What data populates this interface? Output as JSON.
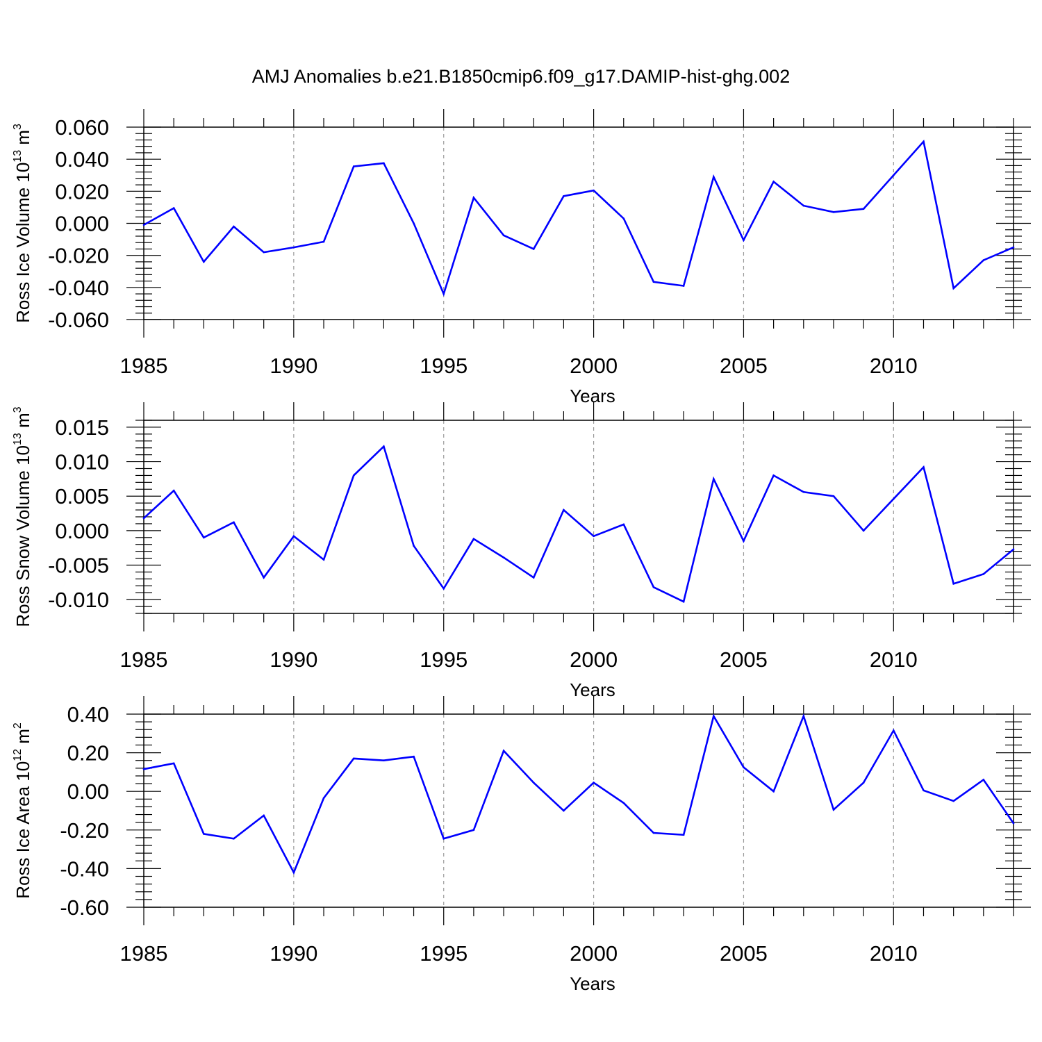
{
  "title": "AMJ Anomalies b.e21.B1850cmip6.f09_g17.DAMIP-hist-ghg.002",
  "colors": {
    "line": "#0000ff",
    "frame": "#000000",
    "grid": "#999999"
  },
  "chart_data": [
    {
      "type": "line",
      "ylabel": "Ross Ice Volume 10",
      "ylabel_exp": "13",
      "ylabel_unit": " m",
      "ylabel_unit_exp": "3",
      "xlabel": "Years",
      "xlim": [
        1985,
        2014
      ],
      "ylim": [
        -0.06,
        0.06
      ],
      "yticks": [
        -0.06,
        -0.04,
        -0.02,
        0.0,
        0.02,
        0.04,
        0.06
      ],
      "ytick_labels": [
        "-0.060",
        "-0.040",
        "-0.020",
        "0.000",
        "0.020",
        "0.040",
        "0.060"
      ],
      "xticks": [
        1985,
        1990,
        1995,
        2000,
        2005,
        2010
      ],
      "xtick_labels": [
        "1985",
        "1990",
        "1995",
        "2000",
        "2005",
        "2010"
      ],
      "grid": "vertical dashed at major x ticks",
      "x": [
        1985,
        1986,
        1987,
        1988,
        1989,
        1990,
        1991,
        1992,
        1993,
        1994,
        1995,
        1996,
        1997,
        1998,
        1999,
        2000,
        2001,
        2002,
        2003,
        2004,
        2005,
        2006,
        2007,
        2008,
        2009,
        2010,
        2011,
        2012,
        2013,
        2014
      ],
      "values": [
        -0.001,
        0.0095,
        -0.024,
        -0.002,
        -0.018,
        -0.015,
        -0.0115,
        0.0355,
        0.0375,
        0.0,
        -0.044,
        0.016,
        -0.0075,
        -0.016,
        0.017,
        0.0205,
        0.003,
        -0.0365,
        -0.039,
        0.029,
        -0.0105,
        0.026,
        0.011,
        0.007,
        0.009,
        0.03,
        0.051,
        -0.0405,
        -0.023,
        -0.015
      ]
    },
    {
      "type": "line",
      "ylabel": "Ross Snow Volume 10",
      "ylabel_exp": "13",
      "ylabel_unit": " m",
      "ylabel_unit_exp": "3",
      "xlabel": "Years",
      "xlim": [
        1985,
        2014
      ],
      "ylim": [
        -0.012,
        0.016
      ],
      "yticks": [
        -0.01,
        -0.005,
        0.0,
        0.005,
        0.01,
        0.015
      ],
      "ytick_labels": [
        "-0.010",
        "-0.005",
        "0.000",
        "0.005",
        "0.010",
        "0.015"
      ],
      "xticks": [
        1985,
        1990,
        1995,
        2000,
        2005,
        2010
      ],
      "xtick_labels": [
        "1985",
        "1990",
        "1995",
        "2000",
        "2005",
        "2010"
      ],
      "grid": "vertical dashed at major x ticks",
      "x": [
        1985,
        1986,
        1987,
        1988,
        1989,
        1990,
        1991,
        1992,
        1993,
        1994,
        1995,
        1996,
        1997,
        1998,
        1999,
        2000,
        2001,
        2002,
        2003,
        2004,
        2005,
        2006,
        2007,
        2008,
        2009,
        2010,
        2011,
        2012,
        2013,
        2014
      ],
      "values": [
        0.0018,
        0.0058,
        -0.001,
        0.0012,
        -0.0068,
        -0.0008,
        -0.0042,
        0.008,
        0.0122,
        -0.0022,
        -0.0084,
        -0.0012,
        -0.0039,
        -0.0068,
        0.003,
        -0.0008,
        0.0009,
        -0.0082,
        -0.0103,
        0.0075,
        -0.0015,
        0.008,
        0.0056,
        0.005,
        0.0,
        0.0046,
        0.0092,
        -0.0077,
        -0.0063,
        -0.0027
      ]
    },
    {
      "type": "line",
      "ylabel": "Ross Ice Area 10",
      "ylabel_exp": "12",
      "ylabel_unit": " m",
      "ylabel_unit_exp": "2",
      "xlabel": "Years",
      "xlim": [
        1985,
        2014
      ],
      "ylim": [
        -0.6,
        0.4
      ],
      "yticks": [
        -0.6,
        -0.4,
        -0.2,
        0.0,
        0.2,
        0.4
      ],
      "ytick_labels": [
        "-0.60",
        "-0.40",
        "-0.20",
        "0.00",
        "0.20",
        "0.40"
      ],
      "xticks": [
        1985,
        1990,
        1995,
        2000,
        2005,
        2010
      ],
      "xtick_labels": [
        "1985",
        "1990",
        "1995",
        "2000",
        "2005",
        "2010"
      ],
      "grid": "vertical dashed at major x ticks",
      "x": [
        1985,
        1986,
        1987,
        1988,
        1989,
        1990,
        1991,
        1992,
        1993,
        1994,
        1995,
        1996,
        1997,
        1998,
        1999,
        2000,
        2001,
        2002,
        2003,
        2004,
        2005,
        2006,
        2007,
        2008,
        2009,
        2010,
        2011,
        2012,
        2013,
        2014
      ],
      "values": [
        0.115,
        0.145,
        -0.22,
        -0.245,
        -0.125,
        -0.42,
        -0.035,
        0.17,
        0.16,
        0.18,
        -0.245,
        -0.2,
        0.21,
        0.045,
        -0.1,
        0.045,
        -0.06,
        -0.215,
        -0.225,
        0.39,
        0.125,
        0.0,
        0.39,
        -0.095,
        0.045,
        0.315,
        0.005,
        -0.05,
        0.06,
        -0.165
      ]
    }
  ]
}
